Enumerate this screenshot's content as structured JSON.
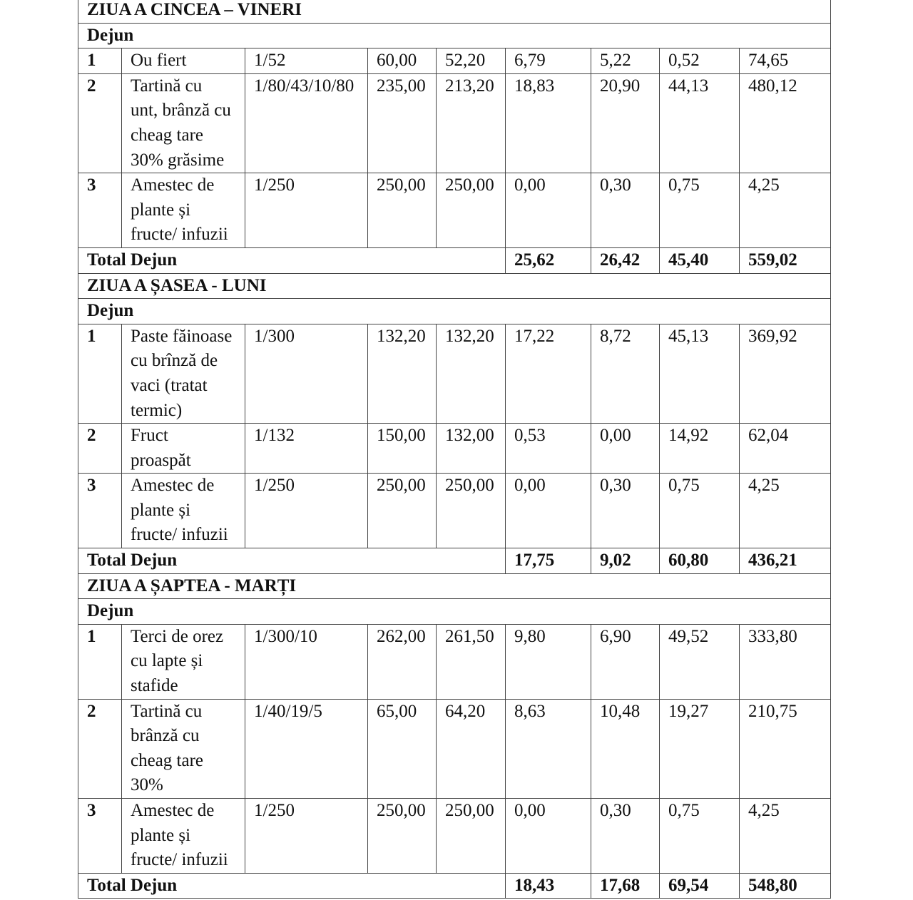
{
  "days": [
    {
      "title": "ZIUA A CINCEA – VINERI",
      "meal": "Dejun",
      "rows": [
        {
          "nr": "1",
          "name": "Ou fiert",
          "portion": "1/52",
          "gross": "60,00",
          "net": "52,20",
          "p": "6,79",
          "l": "5,22",
          "g": "0,52",
          "kcal": "74,65"
        },
        {
          "nr": "2",
          "name": "Tartină cu\nunt, brânză cu\ncheag tare\n30% grăsime",
          "portion": "1/80/43/10/80",
          "gross": "235,00",
          "net": "213,20",
          "p": "18,83",
          "l": "20,90",
          "g": "44,13",
          "kcal": "480,12"
        },
        {
          "nr": "3",
          "name": "Amestec de\nplante și\nfructe/ infuzii",
          "portion": "1/250",
          "gross": "250,00",
          "net": "250,00",
          "p": "0,00",
          "l": "0,30",
          "g": "0,75",
          "kcal": "4,25"
        }
      ],
      "total": {
        "label": "Total Dejun",
        "p": "25,62",
        "l": "26,42",
        "g": "45,40",
        "kcal": "559,02"
      }
    },
    {
      "title": "ZIUA A ȘASEA - LUNI",
      "meal": "Dejun",
      "rows": [
        {
          "nr": "1",
          "name": "Paste făinoase\ncu brînză de\nvaci (tratat\ntermic)",
          "portion": "1/300",
          "gross": "132,20",
          "net": "132,20",
          "p": "17,22",
          "l": "8,72",
          "g": "45,13",
          "kcal": "369,92"
        },
        {
          "nr": "2",
          "name": "Fruct\nproaspăt",
          "portion": "1/132",
          "gross": "150,00",
          "net": "132,00",
          "p": "0,53",
          "l": "0,00",
          "g": "14,92",
          "kcal": "62,04"
        },
        {
          "nr": "3",
          "name": "Amestec de\nplante și\nfructe/ infuzii",
          "portion": "1/250",
          "gross": "250,00",
          "net": "250,00",
          "p": "0,00",
          "l": "0,30",
          "g": "0,75",
          "kcal": "4,25"
        }
      ],
      "total": {
        "label": "Total Dejun",
        "p": "17,75",
        "l": "9,02",
        "g": "60,80",
        "kcal": "436,21"
      }
    },
    {
      "title": "ZIUA A ȘAPTEA - MARȚI",
      "meal": "Dejun",
      "rows": [
        {
          "nr": "1",
          "name": "Terci de orez\ncu lapte și\nstafide",
          "portion": "1/300/10",
          "gross": "262,00",
          "net": "261,50",
          "p": "9,80",
          "l": "6,90",
          "g": "49,52",
          "kcal": "333,80"
        },
        {
          "nr": "2",
          "name": "Tartină cu\nbrânză cu\ncheag tare\n30%",
          "portion": "1/40/19/5",
          "gross": "65,00",
          "net": "64,20",
          "p": "8,63",
          "l": "10,48",
          "g": "19,27",
          "kcal": "210,75"
        },
        {
          "nr": "3",
          "name": "Amestec de\nplante și\nfructe/ infuzii",
          "portion": "1/250",
          "gross": "250,00",
          "net": "250,00",
          "p": "0,00",
          "l": "0,30",
          "g": "0,75",
          "kcal": "4,25"
        }
      ],
      "total": {
        "label": "Total Dejun",
        "p": "18,43",
        "l": "17,68",
        "g": "69,54",
        "kcal": "548,80"
      }
    }
  ]
}
